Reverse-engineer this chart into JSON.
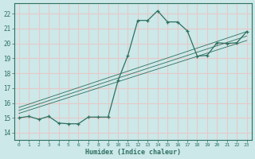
{
  "xlabel": "Humidex (Indice chaleur)",
  "bg_color": "#cce8e8",
  "grid_color": "#e8c8c8",
  "line_color": "#2e7060",
  "xlim": [
    -0.5,
    23.5
  ],
  "ylim": [
    13.5,
    22.7
  ],
  "xticks": [
    0,
    1,
    2,
    3,
    4,
    5,
    6,
    7,
    8,
    9,
    10,
    11,
    12,
    13,
    14,
    15,
    16,
    17,
    18,
    19,
    20,
    21,
    22,
    23
  ],
  "yticks": [
    14,
    15,
    16,
    17,
    18,
    19,
    20,
    21,
    22
  ],
  "main_x": [
    0,
    1,
    2,
    3,
    4,
    5,
    6,
    7,
    8,
    9,
    10,
    11,
    12,
    13,
    14,
    15,
    16,
    17,
    18,
    19,
    20,
    21,
    22,
    23
  ],
  "main_y": [
    15.0,
    15.1,
    14.9,
    15.1,
    14.65,
    14.6,
    14.6,
    15.05,
    15.05,
    15.05,
    17.5,
    19.2,
    21.55,
    21.55,
    22.2,
    21.45,
    21.45,
    20.85,
    19.15,
    19.2,
    20.05,
    20.0,
    20.05,
    20.8
  ],
  "line1_x": [
    0,
    23
  ],
  "line1_y": [
    15.3,
    20.2
  ],
  "line2_x": [
    0,
    23
  ],
  "line2_y": [
    15.5,
    20.5
  ],
  "line3_x": [
    0,
    23
  ],
  "line3_y": [
    15.7,
    20.8
  ]
}
